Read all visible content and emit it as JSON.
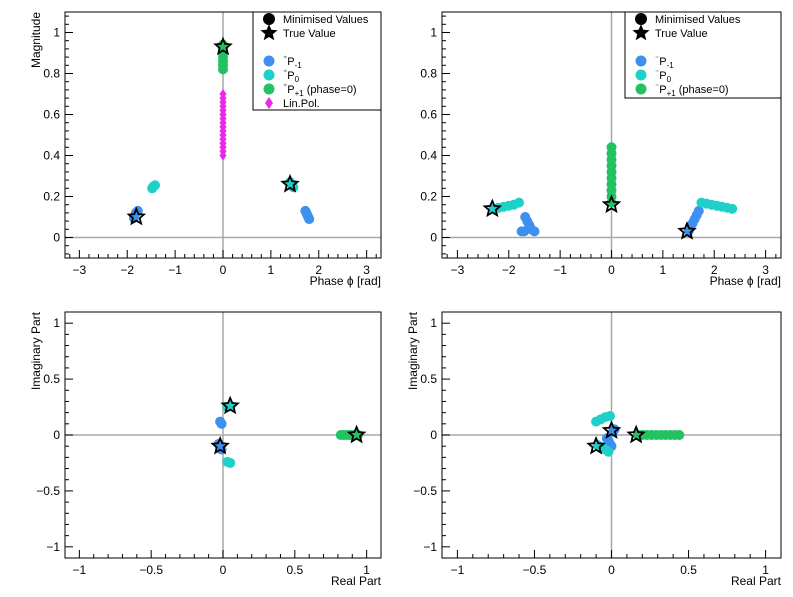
{
  "colors": {
    "pm1": "#3d8ff0",
    "p0": "#1fd0c8",
    "pp1": "#22c262",
    "linpol": "#e82ae8",
    "axis_line": "#a8a8a8",
    "star": "#000000"
  },
  "legend_common": {
    "minimised_label": "Minimised Values",
    "true_label": "True Value"
  },
  "chart_data": [
    {
      "name": "top-left",
      "type": "scatter",
      "xlabel": "Phase ϕ [rad]",
      "ylabel": "Magnitude",
      "xlim": [
        -3.3,
        3.3
      ],
      "ylim": [
        -0.1,
        1.1
      ],
      "xticks": [
        -3,
        -2,
        -1,
        0,
        1,
        2,
        3
      ],
      "yticks": [
        0,
        0.2,
        0.4,
        0.6,
        0.8,
        1
      ],
      "ref_lines": {
        "x": 0,
        "y": 0
      },
      "legend": {
        "items": [
          {
            "key": "pm1",
            "label_pre": "⁺",
            "label_main": "P",
            "label_sub": "-1",
            "label_post": ""
          },
          {
            "key": "p0",
            "label_pre": "⁺",
            "label_main": "P",
            "label_sub": "0",
            "label_post": ""
          },
          {
            "key": "pp1",
            "label_pre": "⁺",
            "label_main": "P",
            "label_sub": "+1",
            "label_post": " (phase=0)"
          },
          {
            "key": "linpol",
            "label_pre": "",
            "label_main": "Lin.Pol.",
            "label_sub": "",
            "label_post": ""
          }
        ]
      },
      "series": [
        {
          "key": "pm1",
          "marker": "circle",
          "points": [
            [
              -1.86,
              0.095
            ],
            [
              -1.82,
              0.12
            ],
            [
              -1.78,
              0.13
            ],
            [
              1.72,
              0.13
            ],
            [
              1.74,
              0.12
            ],
            [
              1.76,
              0.11
            ],
            [
              1.78,
              0.1
            ],
            [
              1.8,
              0.09
            ]
          ]
        },
        {
          "key": "p0",
          "marker": "circle",
          "points": [
            [
              -1.48,
              0.24
            ],
            [
              -1.45,
              0.25
            ],
            [
              -1.42,
              0.255
            ],
            [
              1.4,
              0.27
            ],
            [
              1.44,
              0.255
            ],
            [
              1.47,
              0.245
            ]
          ]
        },
        {
          "key": "pp1",
          "marker": "circle",
          "points": [
            [
              0,
              0.82
            ],
            [
              0,
              0.84
            ],
            [
              0,
              0.86
            ],
            [
              0,
              0.88
            ],
            [
              0,
              0.9
            ],
            [
              0,
              0.92
            ],
            [
              0,
              0.94
            ]
          ]
        },
        {
          "key": "linpol",
          "marker": "diamond",
          "points": [
            [
              0,
              0.4
            ],
            [
              0,
              0.42
            ],
            [
              0,
              0.44
            ],
            [
              0,
              0.46
            ],
            [
              0,
              0.48
            ],
            [
              0,
              0.5
            ],
            [
              0,
              0.52
            ],
            [
              0,
              0.54
            ],
            [
              0,
              0.56
            ],
            [
              0,
              0.58
            ],
            [
              0,
              0.6
            ],
            [
              0,
              0.62
            ],
            [
              0,
              0.64
            ],
            [
              0,
              0.66
            ],
            [
              0,
              0.68
            ],
            [
              0,
              0.7
            ]
          ]
        }
      ],
      "true_values": [
        [
          -1.81,
          0.1
        ],
        [
          1.4,
          0.26
        ],
        [
          0,
          0.93
        ]
      ]
    },
    {
      "name": "top-right",
      "type": "scatter",
      "xlabel": "Phase ϕ [rad]",
      "ylabel": "",
      "xlim": [
        -3.3,
        3.3
      ],
      "ylim": [
        -0.1,
        1.1
      ],
      "xticks": [
        -3,
        -2,
        -1,
        0,
        1,
        2,
        3
      ],
      "yticks": [
        0,
        0.2,
        0.4,
        0.6,
        0.8,
        1
      ],
      "ref_lines": {
        "x": 0,
        "y": 0
      },
      "legend": {
        "items": [
          {
            "key": "pm1",
            "label_pre": "⁻",
            "label_main": "P",
            "label_sub": "-1",
            "label_post": ""
          },
          {
            "key": "p0",
            "label_pre": "⁻",
            "label_main": "P",
            "label_sub": "0",
            "label_post": ""
          },
          {
            "key": "pp1",
            "label_pre": "⁻",
            "label_main": "P",
            "label_sub": "+1",
            "label_post": " (phase=0)"
          }
        ]
      },
      "series": [
        {
          "key": "pm1",
          "marker": "circle",
          "points": [
            [
              -1.75,
              0.03
            ],
            [
              -1.7,
              0.03
            ],
            [
              -1.68,
              0.1
            ],
            [
              -1.64,
              0.08
            ],
            [
              -1.6,
              0.06
            ],
            [
              -1.56,
              0.04
            ],
            [
              -1.5,
              0.03
            ],
            [
              1.5,
              0.03
            ],
            [
              1.54,
              0.05
            ],
            [
              1.58,
              0.07
            ],
            [
              1.62,
              0.09
            ],
            [
              1.66,
              0.11
            ],
            [
              1.7,
              0.13
            ]
          ]
        },
        {
          "key": "p0",
          "marker": "circle",
          "points": [
            [
              -2.3,
              0.14
            ],
            [
              -2.2,
              0.145
            ],
            [
              -2.1,
              0.15
            ],
            [
              -2.0,
              0.155
            ],
            [
              -1.9,
              0.16
            ],
            [
              -1.8,
              0.17
            ],
            [
              1.75,
              0.17
            ],
            [
              1.85,
              0.165
            ],
            [
              1.95,
              0.16
            ],
            [
              2.05,
              0.155
            ],
            [
              2.15,
              0.15
            ],
            [
              2.25,
              0.145
            ],
            [
              2.35,
              0.14
            ]
          ]
        },
        {
          "key": "pp1",
          "marker": "circle",
          "points": [
            [
              0,
              0.17
            ],
            [
              0,
              0.2
            ],
            [
              0,
              0.23
            ],
            [
              0,
              0.26
            ],
            [
              0,
              0.29
            ],
            [
              0,
              0.32
            ],
            [
              0,
              0.35
            ],
            [
              0,
              0.38
            ],
            [
              0,
              0.41
            ],
            [
              0,
              0.44
            ]
          ]
        }
      ],
      "true_values": [
        [
          -2.32,
          0.14
        ],
        [
          0,
          0.16
        ],
        [
          1.47,
          0.03
        ]
      ]
    },
    {
      "name": "bottom-left",
      "type": "scatter",
      "xlabel": "Real Part",
      "ylabel": "Imaginary Part",
      "xlim": [
        -1.1,
        1.1
      ],
      "ylim": [
        -1.1,
        1.1
      ],
      "xticks": [
        -1,
        -0.5,
        0,
        0.5,
        1
      ],
      "yticks": [
        -1,
        -0.5,
        0,
        0.5,
        1
      ],
      "ref_lines": {
        "x": 0,
        "y": 0
      },
      "series": [
        {
          "key": "pm1",
          "marker": "circle",
          "points": [
            [
              -0.01,
              0.1
            ],
            [
              -0.02,
              0.12
            ],
            [
              -0.03,
              -0.08
            ],
            [
              -0.02,
              -0.11
            ],
            [
              -0.01,
              -0.13
            ]
          ]
        },
        {
          "key": "p0",
          "marker": "circle",
          "points": [
            [
              0.03,
              -0.24
            ],
            [
              0.05,
              -0.25
            ],
            [
              0.03,
              0.25
            ],
            [
              0.05,
              0.26
            ]
          ]
        },
        {
          "key": "pp1",
          "marker": "circle",
          "points": [
            [
              0.82,
              0
            ],
            [
              0.84,
              0
            ],
            [
              0.86,
              0
            ],
            [
              0.88,
              0
            ],
            [
              0.9,
              0
            ],
            [
              0.92,
              0
            ],
            [
              0.94,
              0
            ]
          ]
        }
      ],
      "true_values": [
        [
          -0.02,
          -0.1
        ],
        [
          0.05,
          0.26
        ],
        [
          0.93,
          0
        ]
      ]
    },
    {
      "name": "bottom-right",
      "type": "scatter",
      "xlabel": "Real Part",
      "ylabel": "Imaginary Part",
      "xlim": [
        -1.1,
        1.1
      ],
      "ylim": [
        -1.1,
        1.1
      ],
      "xticks": [
        -1,
        -0.5,
        0,
        0.5,
        1
      ],
      "yticks": [
        -1,
        -0.5,
        0,
        0.5,
        1
      ],
      "ref_lines": {
        "x": 0,
        "y": 0
      },
      "series": [
        {
          "key": "pm1",
          "marker": "circle",
          "points": [
            [
              -0.02,
              -0.05
            ],
            [
              -0.01,
              -0.08
            ],
            [
              0.0,
              -0.1
            ],
            [
              0.01,
              0.03
            ],
            [
              0.02,
              0.05
            ],
            [
              -0.03,
              -0.03
            ]
          ]
        },
        {
          "key": "p0",
          "marker": "circle",
          "points": [
            [
              -0.1,
              0.12
            ],
            [
              -0.07,
              0.14
            ],
            [
              -0.04,
              0.16
            ],
            [
              -0.01,
              0.17
            ],
            [
              -0.09,
              -0.09
            ],
            [
              -0.06,
              -0.11
            ],
            [
              -0.04,
              -0.13
            ],
            [
              -0.02,
              -0.15
            ]
          ]
        },
        {
          "key": "pp1",
          "marker": "circle",
          "points": [
            [
              0.17,
              0
            ],
            [
              0.2,
              0
            ],
            [
              0.23,
              0
            ],
            [
              0.26,
              0
            ],
            [
              0.29,
              0
            ],
            [
              0.32,
              0
            ],
            [
              0.35,
              0
            ],
            [
              0.38,
              0
            ],
            [
              0.41,
              0
            ],
            [
              0.44,
              0
            ]
          ]
        }
      ],
      "true_values": [
        [
          -0.1,
          -0.1
        ],
        [
          0.0,
          0.04
        ],
        [
          0.16,
          0
        ]
      ]
    }
  ]
}
